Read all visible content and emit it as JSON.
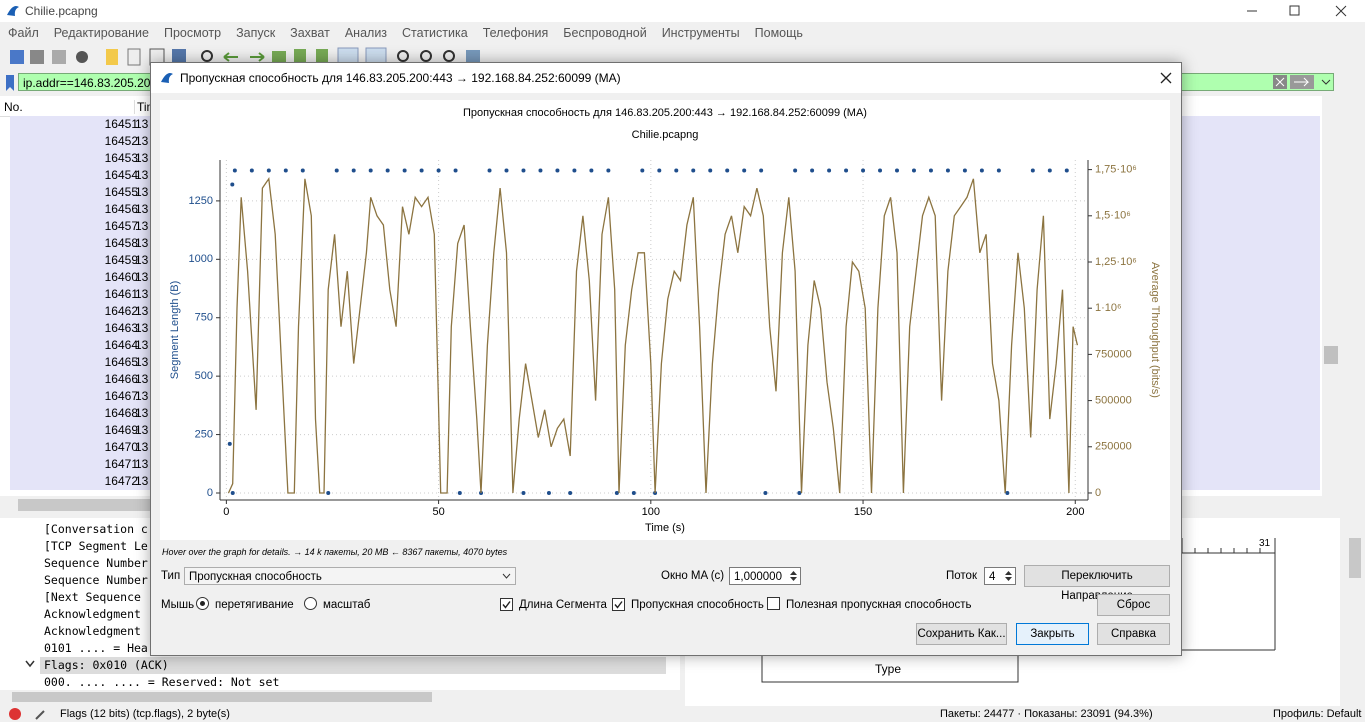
{
  "window": {
    "title": "Chilie.pcapng"
  },
  "menu": [
    "Файл",
    "Редактирование",
    "Просмотр",
    "Запуск",
    "Захват",
    "Анализ",
    "Статистика",
    "Телефония",
    "Беспроводной",
    "Инструменты",
    "Помощь"
  ],
  "filter": "ip.addr==146.83.205.200",
  "packet_list": {
    "columns": [
      "No.",
      "Tim"
    ],
    "rows": [
      [
        "16451",
        "13"
      ],
      [
        "16452",
        "13"
      ],
      [
        "16453",
        "13"
      ],
      [
        "16454",
        "13"
      ],
      [
        "16455",
        "13"
      ],
      [
        "16456",
        "13"
      ],
      [
        "16457",
        "13"
      ],
      [
        "16458",
        "13"
      ],
      [
        "16459",
        "13"
      ],
      [
        "16460",
        "13"
      ],
      [
        "16461",
        "13"
      ],
      [
        "16462",
        "13"
      ],
      [
        "16463",
        "13"
      ],
      [
        "16464",
        "13"
      ],
      [
        "16465",
        "13"
      ],
      [
        "16466",
        "13"
      ],
      [
        "16467",
        "13"
      ],
      [
        "16468",
        "13"
      ],
      [
        "16469",
        "13"
      ],
      [
        "16470",
        "13"
      ],
      [
        "16471",
        "13"
      ],
      [
        "16472",
        "13"
      ]
    ]
  },
  "details": [
    "[Conversation c",
    "[TCP Segment Le",
    "Sequence Number",
    "Sequence Number",
    "[Next Sequence",
    "Acknowledgment",
    "Acknowledgment",
    "0101 .... = Hea",
    "Flags: 0x010 (ACK)",
    "000. .... .... = Reserved: Not set"
  ],
  "diagram": {
    "ruler": "31",
    "type_box": "Type"
  },
  "status": {
    "field": "Flags (12 bits) (tcp.flags), 2 byte(s)",
    "packets": "Пакеты: 24477 · Показаны: 23091 (94.3%)",
    "profile": "Профиль: Default"
  },
  "dialog": {
    "title": "Пропускная способность для 146.83.205.200:443 → 192.168.84.252:60099 (MA)",
    "hint": "Hover over the graph for details. → 14 k пакеты, 20 MB ← 8367 пакеты, 4070 bytes",
    "type_label": "Тип",
    "type_value": "Пропускная способность",
    "ma_label": "Окно MA (с)",
    "ma_value": "1,000000",
    "stream_label": "Поток",
    "stream_value": "4",
    "switch_button": "Переключить Направление",
    "mouse_label": "Мышь",
    "radios": [
      {
        "label": "перетягивание",
        "checked": true
      },
      {
        "label": "масштаб",
        "checked": false
      }
    ],
    "checkboxes": [
      {
        "label": "Длина Сегмента",
        "checked": true
      },
      {
        "label": "Пропускная способность",
        "checked": true
      },
      {
        "label": "Полезная пропускная способность",
        "checked": false
      }
    ],
    "reset_button": "Сброс",
    "buttons": [
      "Сохранить Как...",
      "Закрыть",
      "Справка"
    ]
  },
  "chart_data": {
    "type": "combo",
    "title": "Пропускная способность для 146.83.205.200:443 → 192.168.84.252:60099 (MA)",
    "subtitle": "Chilie.pcapng",
    "xlabel": "Time (s)",
    "ylabel": "Segment Length (B)",
    "y2label": "Average Throughput (bits/s)",
    "xlim": [
      -1.5,
      203
    ],
    "xticks": [
      0,
      50,
      100,
      150,
      200
    ],
    "ylim": [
      -30,
      1425
    ],
    "yticks": [
      0,
      250,
      500,
      750,
      1000,
      1250
    ],
    "y2lim": [
      -38000,
      1802000
    ],
    "y2ticks": [
      0,
      250000,
      500000,
      750000,
      {
        "value": 1000000,
        "label": "1·10⁶"
      },
      {
        "value": 1250000,
        "label": "1,25·10⁶"
      },
      {
        "value": 1500000,
        "label": "1,5·10⁶"
      },
      {
        "value": 1750000,
        "label": "1,75·10⁶"
      }
    ],
    "grid": true,
    "series": [
      {
        "name": "Segment Length",
        "type": "scatter",
        "color": "#1f4e8c",
        "x": [
          0.8,
          1.4,
          1.5,
          2,
          6,
          10,
          14,
          18,
          26,
          30,
          34,
          38,
          42,
          46,
          50,
          54,
          62,
          66,
          70,
          74,
          78,
          82,
          86,
          90,
          98,
          102,
          106,
          110,
          114,
          118,
          122,
          126,
          134,
          138,
          142,
          146,
          150,
          154,
          158,
          162,
          166,
          170,
          174,
          178,
          182,
          190,
          194,
          198,
          24,
          55,
          60,
          70,
          76,
          81,
          92,
          96,
          101,
          127,
          135,
          184
        ],
        "values": [
          210,
          1320,
          0,
          1380,
          1380,
          1380,
          1380,
          1380,
          1380,
          1380,
          1380,
          1380,
          1380,
          1380,
          1380,
          1380,
          1380,
          1380,
          1380,
          1380,
          1380,
          1380,
          1380,
          1380,
          1380,
          1380,
          1380,
          1380,
          1380,
          1380,
          1380,
          1380,
          1380,
          1380,
          1380,
          1380,
          1380,
          1380,
          1380,
          1380,
          1380,
          1380,
          1380,
          1380,
          1380,
          1380,
          1380,
          1380,
          0,
          0,
          0,
          0,
          0,
          0,
          0,
          0,
          0,
          0,
          0,
          0
        ]
      },
      {
        "name": "Average Throughput",
        "type": "line",
        "axis": "y2",
        "color": "#8c7440",
        "x": [
          0.5,
          1.5,
          2.5,
          3.5,
          5,
          7,
          8.5,
          10,
          11.5,
          13,
          14.5,
          16,
          17,
          18.5,
          20,
          21,
          22,
          23,
          24,
          25.5,
          27,
          28.5,
          30,
          31.5,
          33,
          34,
          35.5,
          37,
          38.5,
          40,
          41.5,
          43,
          44.5,
          46,
          47.5,
          49,
          50.5,
          52,
          53,
          54.5,
          56,
          57.5,
          59,
          60,
          61.5,
          63,
          64.5,
          66,
          67.5,
          69,
          70.5,
          72,
          73.5,
          75,
          76.5,
          78,
          79.5,
          81,
          82.5,
          84,
          85.5,
          87,
          88.5,
          90,
          91.5,
          92.5,
          94,
          95.5,
          97,
          98.5,
          100,
          101,
          102.5,
          104,
          105.5,
          107,
          108.5,
          110,
          111.5,
          113,
          114.5,
          116,
          117.5,
          119,
          120.5,
          122,
          123.5,
          125,
          126.5,
          128,
          129.5,
          131,
          132.5,
          134,
          135.5,
          137,
          138.5,
          140,
          141.5,
          143,
          144.5,
          146,
          147.5,
          149,
          150.5,
          152,
          153.5,
          155,
          156.5,
          158,
          159.5,
          161,
          162.5,
          164,
          165.5,
          167,
          168.5,
          170,
          171.5,
          173,
          174.5,
          176,
          177.5,
          179,
          180.5,
          182,
          183.5,
          185,
          186.5,
          188,
          189.5,
          191,
          192.5,
          194,
          195.5,
          197,
          198.5,
          199.5,
          200.5
        ],
        "values": [
          0,
          50000,
          1000000,
          1600000,
          1200000,
          450000,
          1650000,
          1700000,
          1400000,
          700000,
          0,
          0,
          900000,
          1700000,
          1500000,
          400000,
          0,
          0,
          1100000,
          1400000,
          900000,
          1200000,
          700000,
          1000000,
          1300000,
          1600000,
          1500000,
          1450000,
          1100000,
          900000,
          1550000,
          1400000,
          1600000,
          1550000,
          1600000,
          1400000,
          0,
          0,
          900000,
          1350000,
          1450000,
          900000,
          400000,
          0,
          800000,
          1300000,
          1650000,
          1300000,
          0,
          400000,
          700000,
          500000,
          300000,
          450000,
          250000,
          350000,
          400000,
          200000,
          1200000,
          1500000,
          1150000,
          500000,
          1400000,
          1600000,
          1100000,
          0,
          800000,
          1100000,
          1300000,
          1300000,
          700000,
          0,
          700000,
          1050000,
          1200000,
          1150000,
          1450000,
          1600000,
          900000,
          0,
          700000,
          1100000,
          1400000,
          1500000,
          1300000,
          1550000,
          1500000,
          1650000,
          1500000,
          900000,
          550000,
          1300000,
          1600000,
          1200000,
          0,
          800000,
          1150000,
          1000000,
          600000,
          350000,
          0,
          900000,
          1250000,
          1200000,
          1000000,
          0,
          1000000,
          1500000,
          1600000,
          1300000,
          0,
          900000,
          1200000,
          1500000,
          1600000,
          1500000,
          500000,
          1200000,
          1500000,
          1550000,
          1600000,
          1700000,
          1300000,
          1400000,
          700000,
          500000,
          0,
          800000,
          1300000,
          1000000,
          300000,
          1100000,
          1500000,
          400000,
          700000,
          1100000,
          0,
          900000,
          800000
        ]
      }
    ]
  }
}
